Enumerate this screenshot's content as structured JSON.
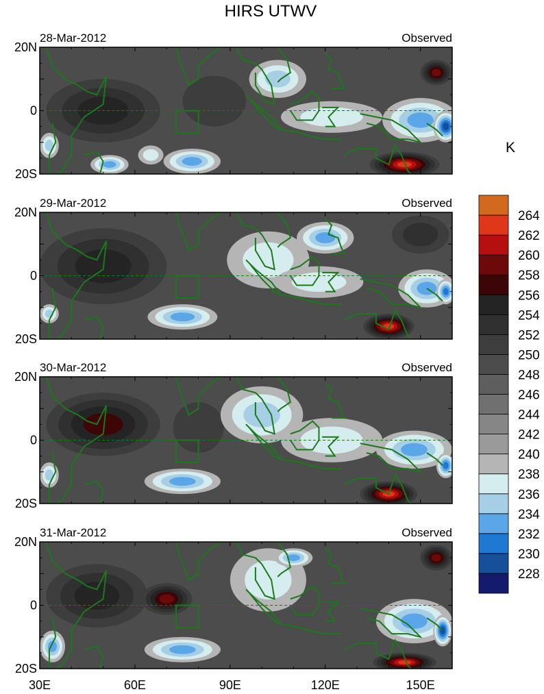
{
  "title": "HIRS UTWV",
  "chart_data": {
    "type": "heatmap",
    "title": "HIRS UTWV",
    "x_ticks": [
      "30E",
      "60E",
      "90E",
      "120E",
      "150E"
    ],
    "x_tick_values": [
      30,
      60,
      90,
      120,
      150
    ],
    "xlim": [
      30,
      160
    ],
    "y_ticks": [
      "20N",
      "0",
      "20S"
    ],
    "y_tick_values": [
      20,
      0,
      -20
    ],
    "ylim": [
      -20,
      20
    ],
    "colorbar": {
      "unit": "K",
      "levels": [
        228,
        230,
        232,
        234,
        236,
        238,
        240,
        242,
        244,
        246,
        248,
        250,
        252,
        254,
        256,
        258,
        260,
        262,
        264
      ],
      "colors": [
        "#141a6e",
        "#17509a",
        "#1f78d2",
        "#5aa6e8",
        "#a6cfe6",
        "#d6edf0",
        "#b5b5b5",
        "#9a9a9a",
        "#868686",
        "#707070",
        "#5e5e5e",
        "#4c4c4c",
        "#3d3d3d",
        "#303030",
        "#242424",
        "#3d0606",
        "#6e0909",
        "#b50f0f",
        "#e0371a",
        "#d2691e"
      ]
    },
    "panels": [
      {
        "date": "28-Mar-2012",
        "label": "Observed",
        "features": [
          {
            "kind": "moist",
            "lon": 105,
            "lat": 10,
            "rx": 9,
            "ry": 6,
            "level": 234
          },
          {
            "kind": "moist",
            "lon": 122,
            "lat": -2,
            "rx": 16,
            "ry": 5,
            "level": 236
          },
          {
            "kind": "moist",
            "lon": 150,
            "lat": -3,
            "rx": 12,
            "ry": 7,
            "level": 232
          },
          {
            "kind": "moist",
            "lon": 158,
            "lat": -5,
            "rx": 4,
            "ry": 5,
            "level": 228
          },
          {
            "kind": "moist",
            "lon": 78,
            "lat": -16,
            "rx": 9,
            "ry": 4,
            "level": 232
          },
          {
            "kind": "moist",
            "lon": 52,
            "lat": -17,
            "rx": 6,
            "ry": 3,
            "level": 232
          },
          {
            "kind": "moist",
            "lon": 65,
            "lat": -14,
            "rx": 4,
            "ry": 3,
            "level": 236
          },
          {
            "kind": "moist",
            "lon": 33,
            "lat": -11,
            "rx": 3,
            "ry": 4,
            "level": 234
          },
          {
            "kind": "dry",
            "lon": 50,
            "lat": 0,
            "rx": 18,
            "ry": 10,
            "level": 254
          },
          {
            "kind": "dry",
            "lon": 85,
            "lat": 3,
            "rx": 10,
            "ry": 8,
            "level": 250
          },
          {
            "kind": "hot",
            "lon": 155,
            "lat": 12,
            "rx": 5,
            "ry": 4,
            "level": 258
          },
          {
            "kind": "hot",
            "lon": 145,
            "lat": -17,
            "rx": 11,
            "ry": 4,
            "level": 262
          }
        ]
      },
      {
        "date": "29-Mar-2012",
        "label": "Observed",
        "features": [
          {
            "kind": "moist",
            "lon": 102,
            "lat": 5,
            "rx": 13,
            "ry": 9,
            "level": 236
          },
          {
            "kind": "moist",
            "lon": 120,
            "lat": 12,
            "rx": 9,
            "ry": 5,
            "level": 232
          },
          {
            "kind": "moist",
            "lon": 118,
            "lat": -2,
            "rx": 14,
            "ry": 5,
            "level": 236
          },
          {
            "kind": "moist",
            "lon": 152,
            "lat": -4,
            "rx": 9,
            "ry": 6,
            "level": 232
          },
          {
            "kind": "moist",
            "lon": 158,
            "lat": -5,
            "rx": 3,
            "ry": 4,
            "level": 230
          },
          {
            "kind": "moist",
            "lon": 75,
            "lat": -13,
            "rx": 11,
            "ry": 4,
            "level": 232
          },
          {
            "kind": "moist",
            "lon": 33,
            "lat": -12,
            "rx": 3,
            "ry": 3,
            "level": 234
          },
          {
            "kind": "dry",
            "lon": 50,
            "lat": 3,
            "rx": 20,
            "ry": 12,
            "level": 254
          },
          {
            "kind": "dry",
            "lon": 150,
            "lat": 13,
            "rx": 9,
            "ry": 6,
            "level": 252
          },
          {
            "kind": "hot",
            "lon": 140,
            "lat": -16,
            "rx": 8,
            "ry": 4,
            "level": 262
          }
        ]
      },
      {
        "date": "30-Mar-2012",
        "label": "Observed",
        "features": [
          {
            "kind": "moist",
            "lon": 100,
            "lat": 8,
            "rx": 13,
            "ry": 9,
            "level": 234
          },
          {
            "kind": "moist",
            "lon": 122,
            "lat": 0,
            "rx": 16,
            "ry": 7,
            "level": 236
          },
          {
            "kind": "moist",
            "lon": 148,
            "lat": -3,
            "rx": 12,
            "ry": 6,
            "level": 232
          },
          {
            "kind": "moist",
            "lon": 158,
            "lat": -8,
            "rx": 3,
            "ry": 4,
            "level": 230
          },
          {
            "kind": "moist",
            "lon": 75,
            "lat": -13,
            "rx": 12,
            "ry": 4,
            "level": 232
          },
          {
            "kind": "moist",
            "lon": 33,
            "lat": -11,
            "rx": 3,
            "ry": 4,
            "level": 234
          },
          {
            "kind": "dry",
            "lon": 50,
            "lat": 5,
            "rx": 18,
            "ry": 10,
            "level": 256
          },
          {
            "kind": "dry",
            "lon": 80,
            "lat": 4,
            "rx": 8,
            "ry": 8,
            "level": 250
          },
          {
            "kind": "hot",
            "lon": 140,
            "lat": -17,
            "rx": 9,
            "ry": 4,
            "level": 262
          }
        ]
      },
      {
        "date": "31-Mar-2012",
        "label": "Observed",
        "features": [
          {
            "kind": "moist",
            "lon": 102,
            "lat": 8,
            "rx": 12,
            "ry": 10,
            "level": 236
          },
          {
            "kind": "moist",
            "lon": 110,
            "lat": 15,
            "rx": 6,
            "ry": 3,
            "level": 232
          },
          {
            "kind": "moist",
            "lon": 148,
            "lat": -5,
            "rx": 12,
            "ry": 7,
            "level": 232
          },
          {
            "kind": "moist",
            "lon": 157,
            "lat": -8,
            "rx": 3,
            "ry": 5,
            "level": 228
          },
          {
            "kind": "moist",
            "lon": 75,
            "lat": -14,
            "rx": 12,
            "ry": 4,
            "level": 232
          },
          {
            "kind": "moist",
            "lon": 34,
            "lat": -13,
            "rx": 4,
            "ry": 5,
            "level": 232
          },
          {
            "kind": "dry",
            "lon": 48,
            "lat": 3,
            "rx": 16,
            "ry": 10,
            "level": 254
          },
          {
            "kind": "hot",
            "lon": 70,
            "lat": 2,
            "rx": 8,
            "ry": 5,
            "level": 258
          },
          {
            "kind": "hot",
            "lon": 155,
            "lat": 15,
            "rx": 5,
            "ry": 4,
            "level": 258
          },
          {
            "kind": "hot",
            "lon": 145,
            "lat": -18,
            "rx": 10,
            "ry": 3,
            "level": 262
          }
        ]
      }
    ]
  }
}
